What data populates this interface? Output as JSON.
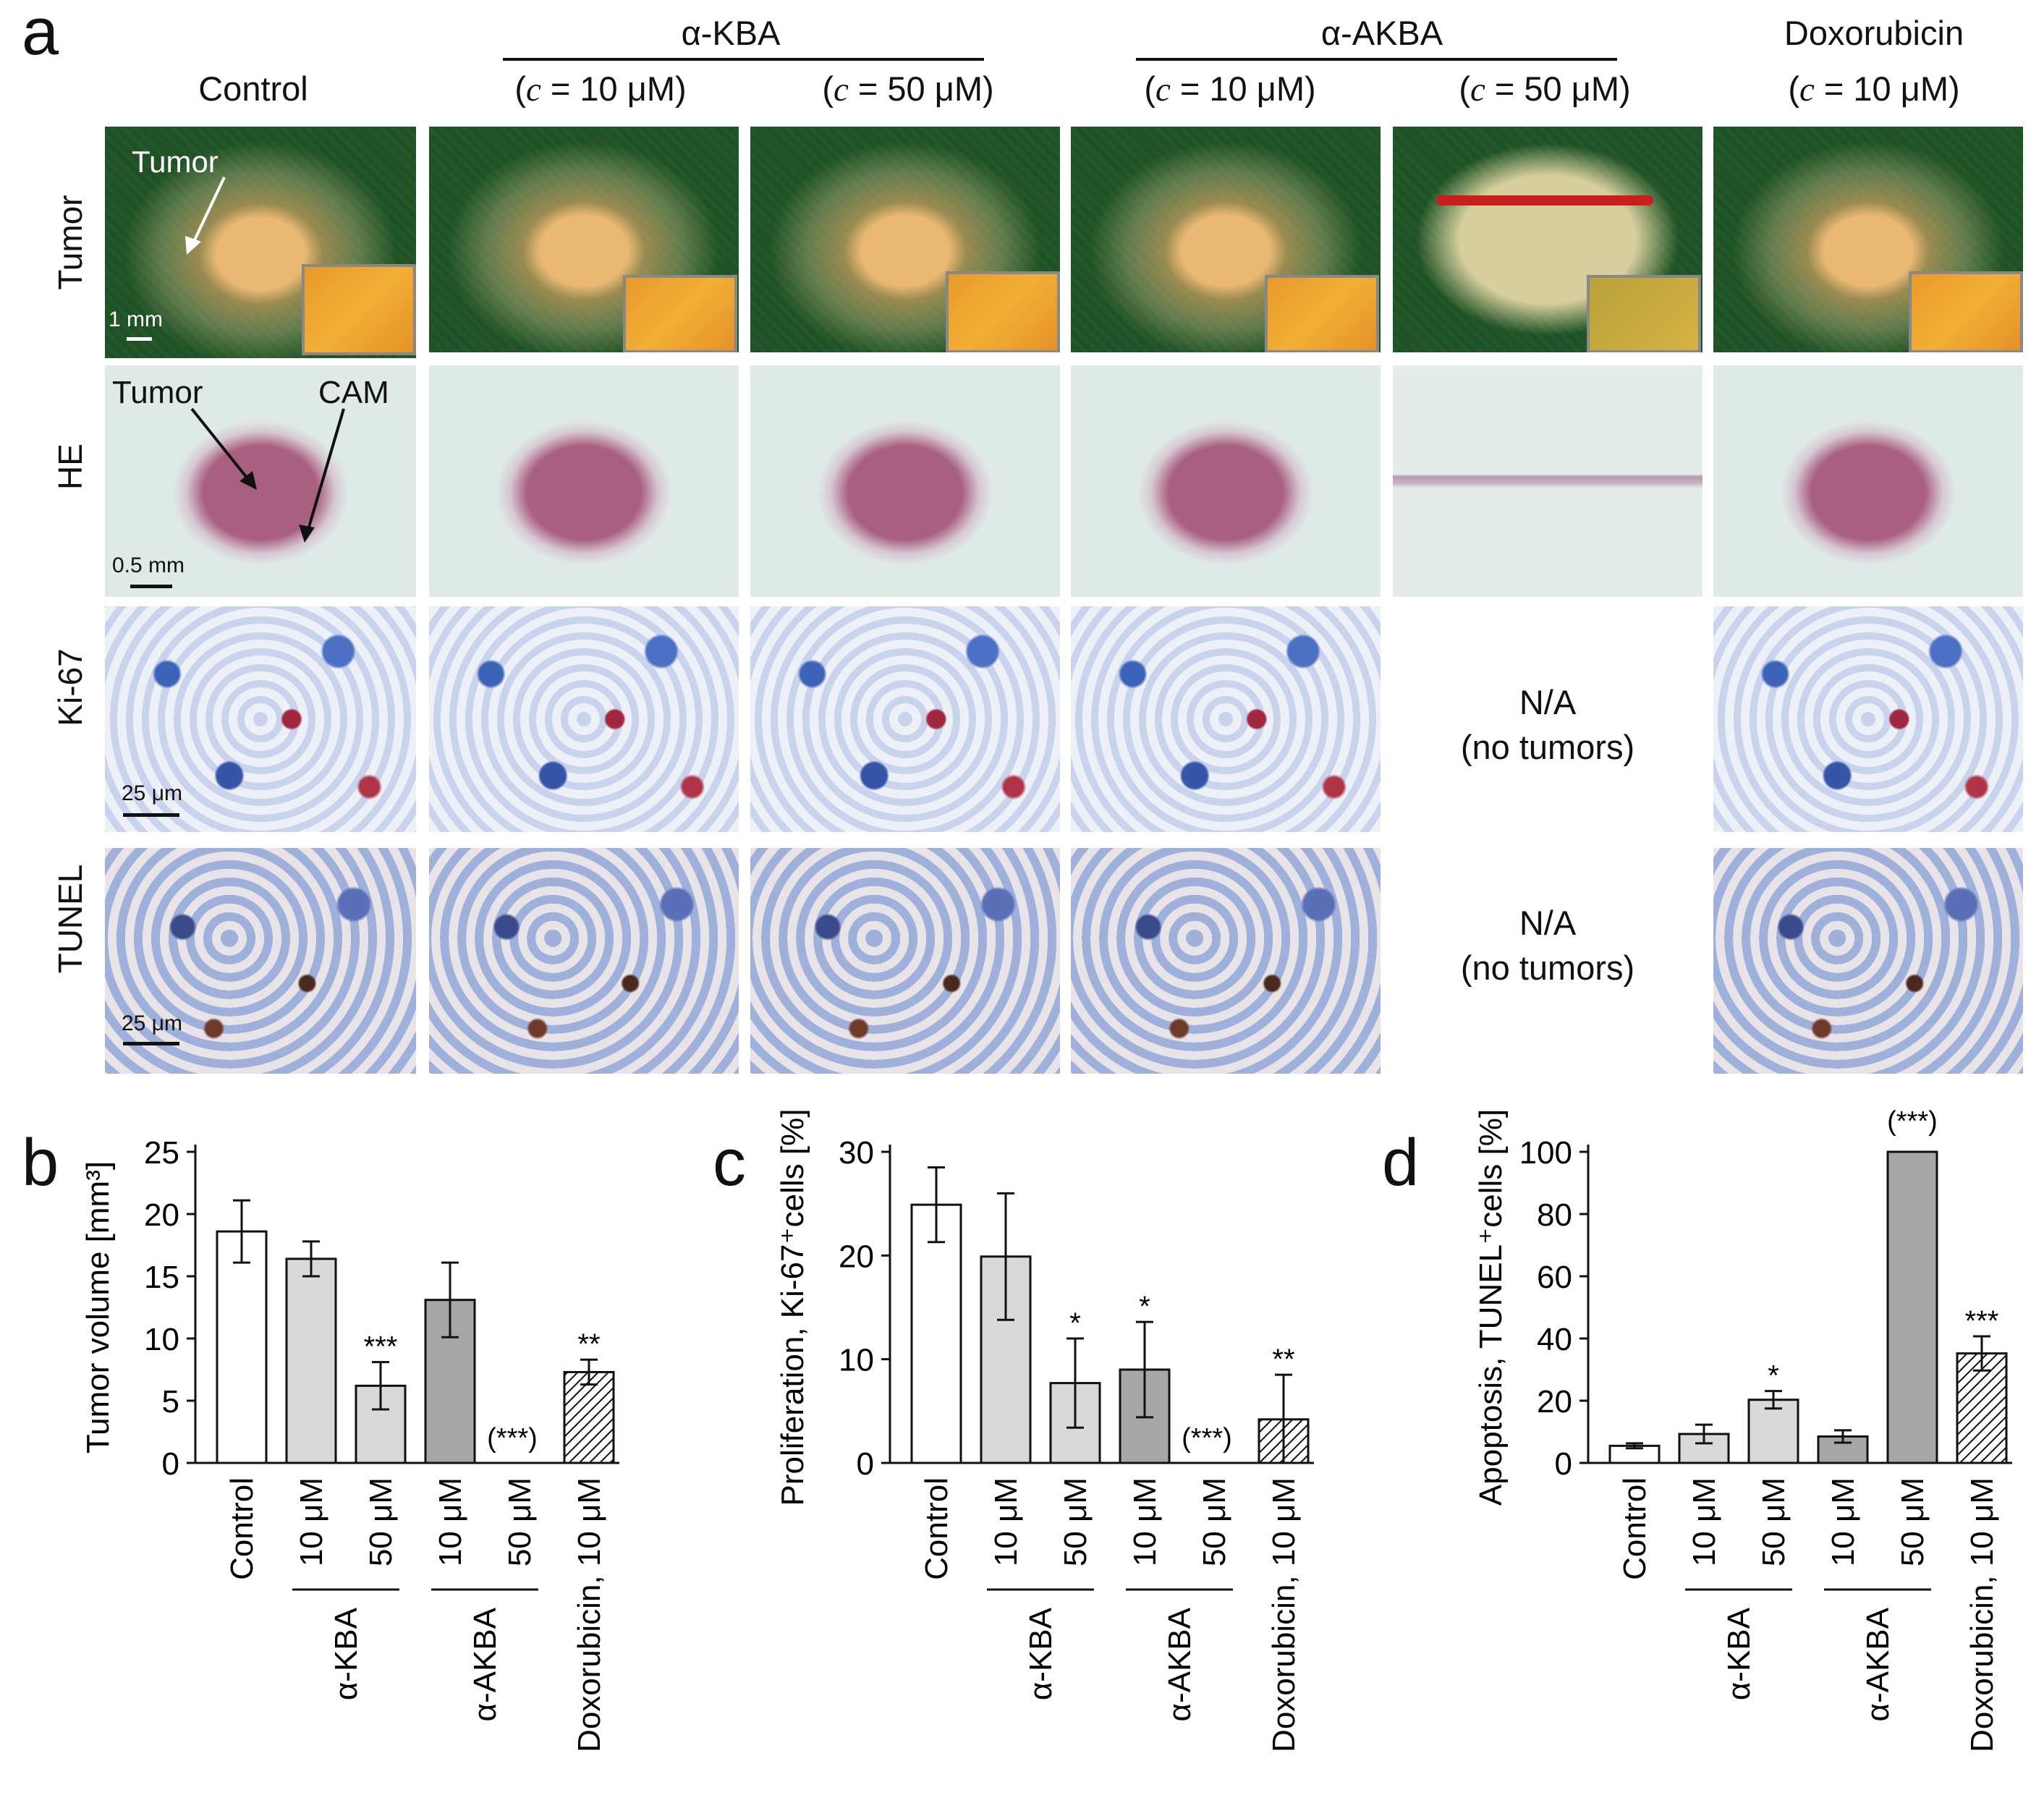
{
  "panel_letters": {
    "a": "a",
    "b": "b",
    "c": "c",
    "d": "d"
  },
  "groups": {
    "control": "Control",
    "akba_top": "α-KBA",
    "aakba_top": "α-AKBA",
    "doxo_top": "Doxorubicin",
    "conc_kba_10": [
      "(",
      "c",
      " = 10 μM)"
    ],
    "conc_kba_50": [
      "(",
      "c",
      " = 50 μM)"
    ],
    "conc_akba_10": [
      "(",
      "c",
      " = 10 μM)"
    ],
    "conc_akba_50": [
      "(",
      "c",
      " = 50 μM)"
    ],
    "conc_doxo_10": [
      "(",
      "c",
      " = 10 μM)"
    ]
  },
  "row_labels": {
    "tumor": "Tumor",
    "he": "HE",
    "ki67": "Ki-67",
    "tunel": "TUNEL"
  },
  "annotations": {
    "tumor_arrow": "Tumor",
    "he_tumor": "Tumor",
    "he_cam": "CAM",
    "scale_tumor": "1 mm",
    "scale_he": "0.5 mm",
    "scale_ki": "25 μm",
    "scale_tunel": "25 μm",
    "na_ki": [
      "N/A",
      "(no tumors)"
    ],
    "na_tunel": [
      "N/A",
      "(no tumors)"
    ]
  },
  "chart_data": [
    {
      "type": "bar",
      "panel": "b",
      "ylabel": "Tumor volume [mm³]",
      "ylim": [
        0,
        25
      ],
      "yticks": [
        0,
        5,
        10,
        15,
        20,
        25
      ],
      "categories": [
        "Control",
        "10 μM",
        "50 μM",
        "10 μM",
        "50 μM",
        "Doxorubicin, 10 μM"
      ],
      "values": [
        18.6,
        16.4,
        6.2,
        13.1,
        0,
        7.3
      ],
      "errors": [
        2.5,
        1.4,
        1.9,
        3.0,
        0,
        1.0
      ],
      "styles": [
        "white",
        "light",
        "light",
        "dark",
        "none",
        "hatch"
      ],
      "significance": [
        "",
        "",
        "***",
        "",
        "(***)",
        "**"
      ],
      "group_labels": [
        "α-KBA",
        "α-AKBA"
      ]
    },
    {
      "type": "bar",
      "panel": "c",
      "ylabel": "Proliferation, Ki-67⁺cells [%]",
      "ylim": [
        0,
        30
      ],
      "yticks": [
        0,
        10,
        20,
        30
      ],
      "categories": [
        "Control",
        "10 μM",
        "50 μM",
        "10 μM",
        "50 μM",
        "Doxorubicin, 10 μM"
      ],
      "values": [
        24.9,
        19.9,
        7.7,
        9.0,
        0,
        4.2
      ],
      "errors": [
        3.6,
        6.1,
        4.3,
        4.6,
        0,
        4.3
      ],
      "styles": [
        "white",
        "light",
        "light",
        "dark",
        "none",
        "hatch"
      ],
      "significance": [
        "",
        "",
        "*",
        "*",
        "(***)",
        "**"
      ],
      "group_labels": [
        "α-KBA",
        "α-AKBA"
      ]
    },
    {
      "type": "bar",
      "panel": "d",
      "ylabel": "Apoptosis, TUNEL⁺cells [%]",
      "ylim": [
        0,
        100
      ],
      "yticks": [
        0,
        20,
        40,
        60,
        80,
        100
      ],
      "categories": [
        "Control",
        "10 μM",
        "50 μM",
        "10 μM",
        "50 μM",
        "Doxorubicin, 10 μM"
      ],
      "values": [
        5.5,
        9.3,
        20.3,
        8.5,
        100,
        35.2
      ],
      "errors": [
        0.8,
        3.0,
        2.8,
        2.0,
        0,
        5.5
      ],
      "styles": [
        "white",
        "light",
        "light",
        "dark",
        "dark",
        "hatch"
      ],
      "significance": [
        "",
        "",
        "*",
        "",
        "(***)",
        "***"
      ],
      "group_labels": [
        "α-KBA",
        "α-AKBA"
      ]
    }
  ]
}
